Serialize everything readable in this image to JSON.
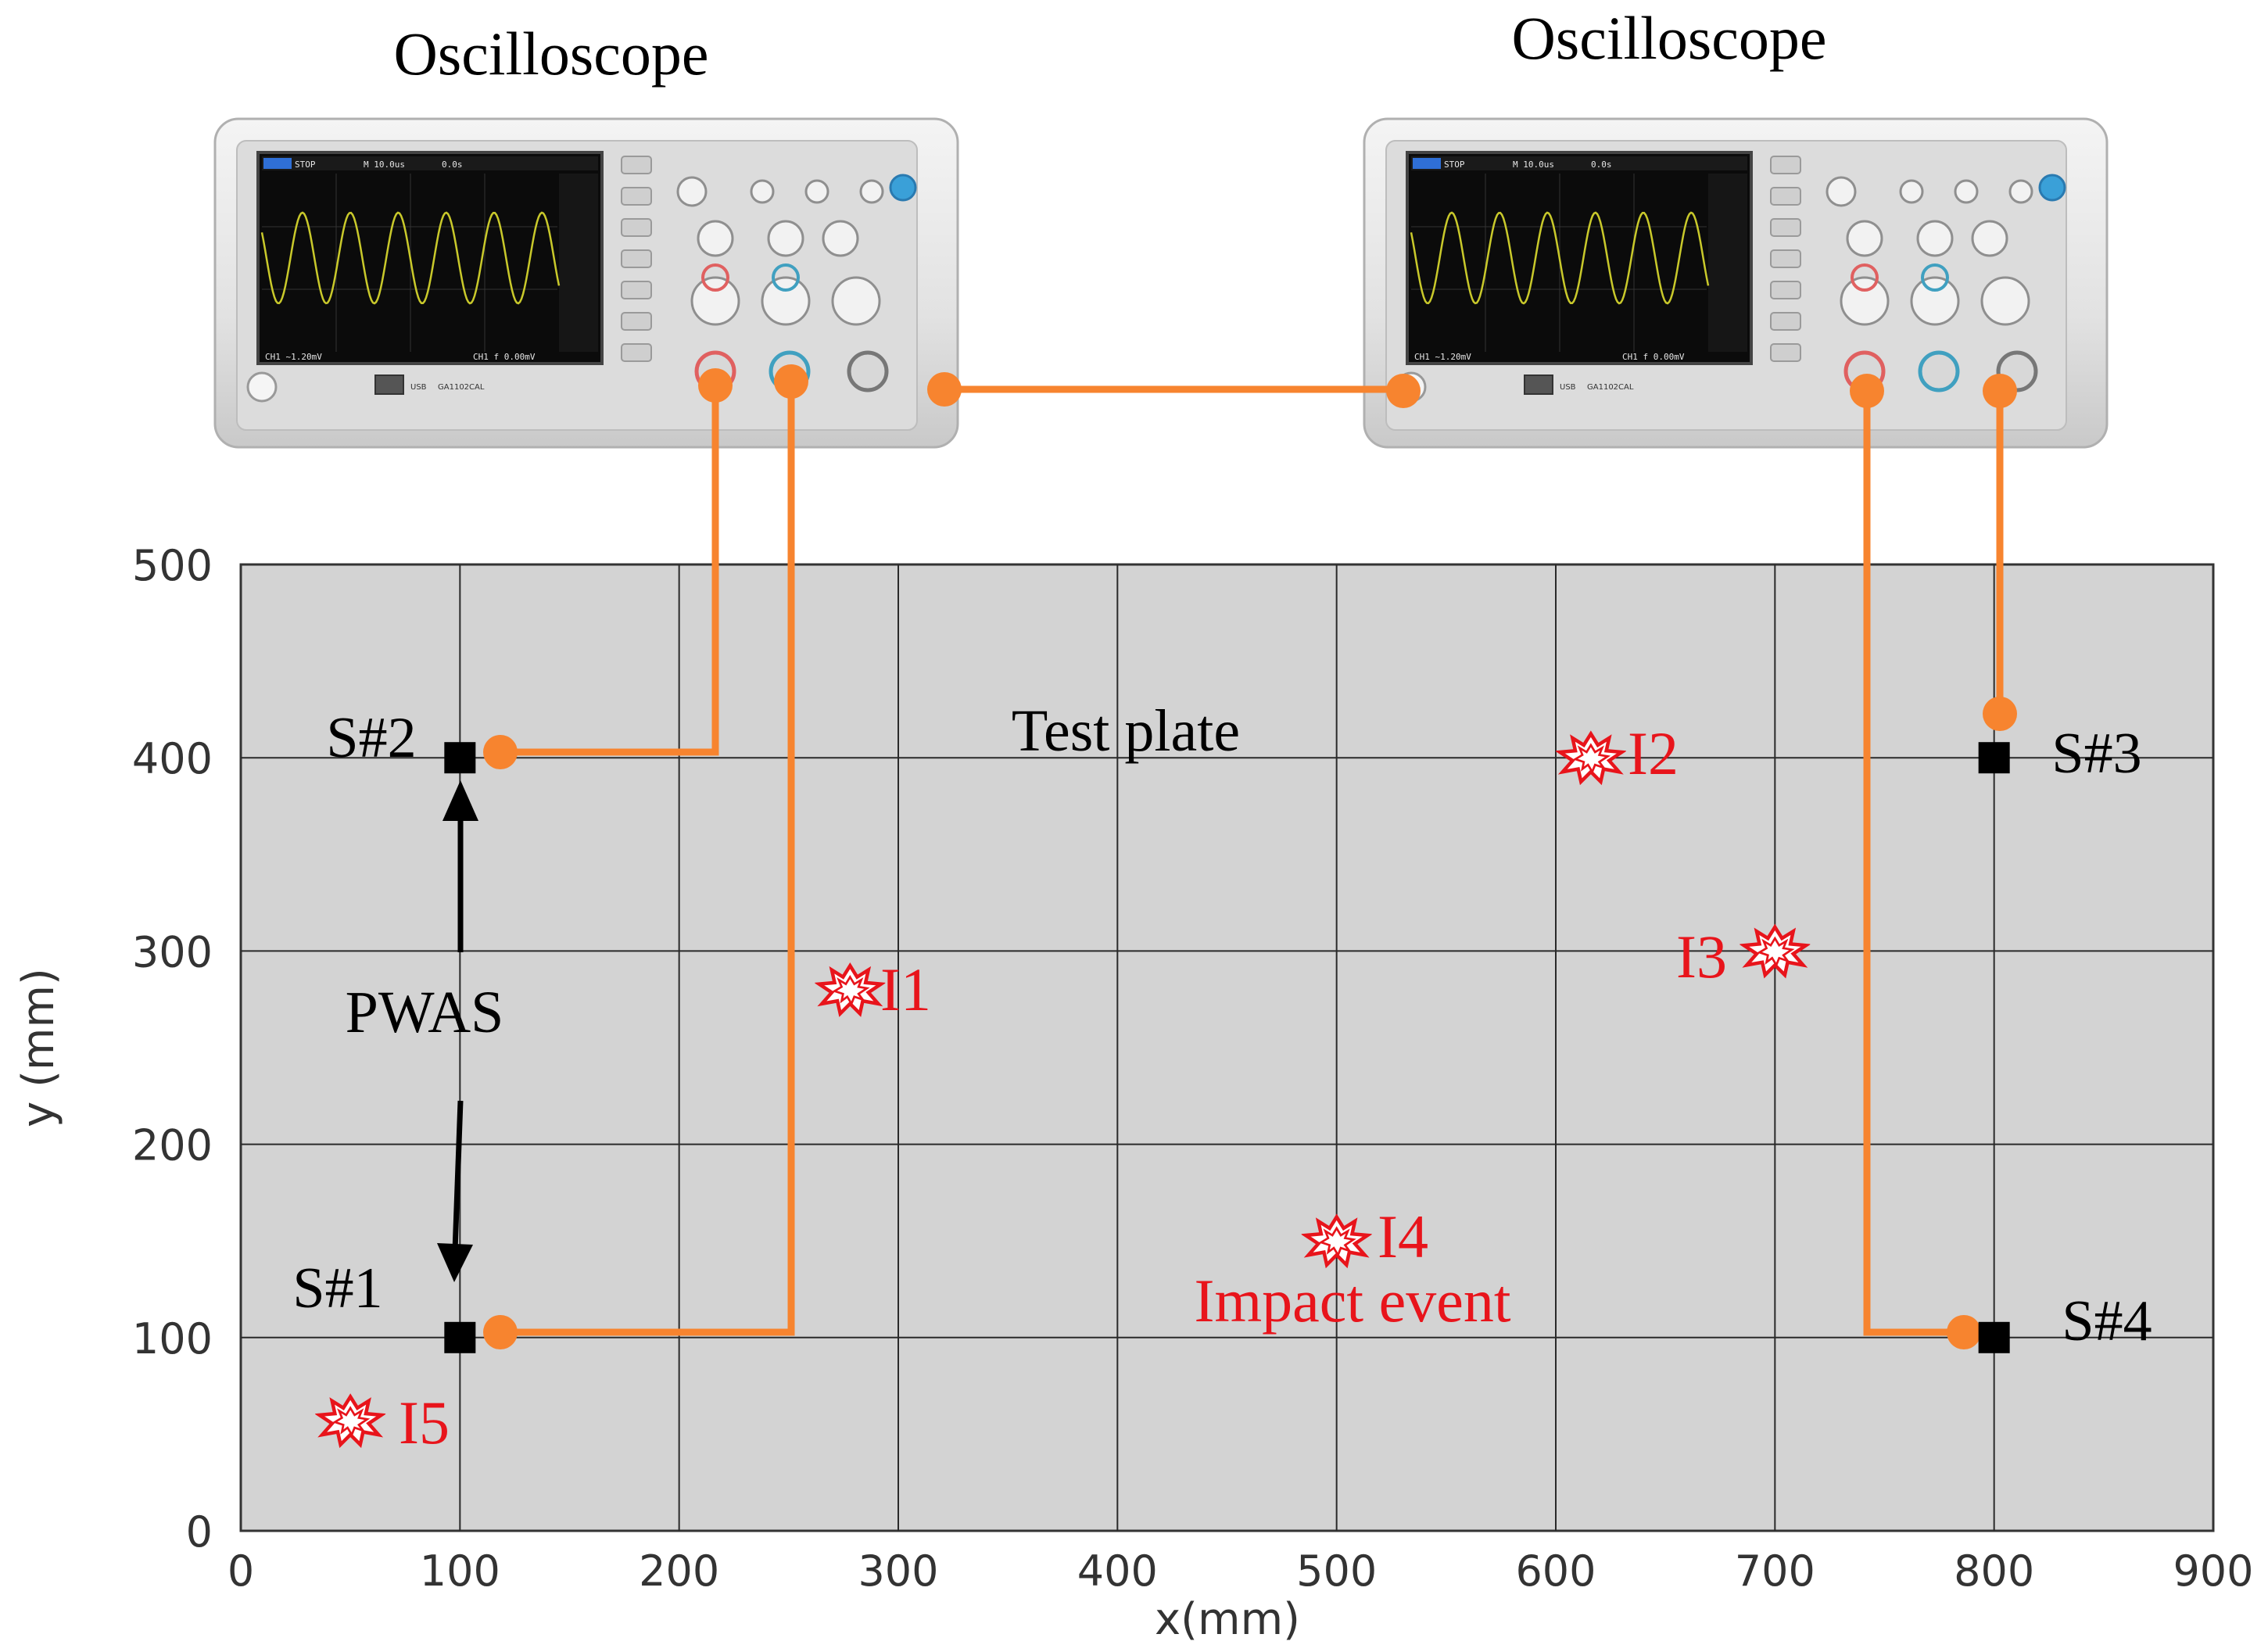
{
  "oscilloscopes": [
    {
      "title": "Oscilloscope",
      "model": "GA1102CAL",
      "usb": "USB",
      "screen": {
        "status": "STOP",
        "timebase": "M 10.0us",
        "offset": "0.0s",
        "footer_left": "CH1 ~1.20mV",
        "footer_right": "CH1 f 0.00mV"
      }
    },
    {
      "title": "Oscilloscope",
      "model": "GA1102CAL",
      "usb": "USB",
      "screen": {
        "status": "STOP",
        "timebase": "M 10.0us",
        "offset": "0.0s",
        "footer_left": "CH1 ~1.20mV",
        "footer_right": "CH1 f 0.00mV"
      }
    }
  ],
  "plate": {
    "title": "Test plate",
    "xlabel": "x(mm)",
    "ylabel": "y (mm)",
    "xlim": [
      0,
      900
    ],
    "ylim": [
      0,
      500
    ],
    "x_ticks": [
      "0",
      "100",
      "200",
      "300",
      "400",
      "500",
      "600",
      "700",
      "800",
      "900"
    ],
    "y_ticks": [
      "0",
      "100",
      "200",
      "300",
      "400",
      "500"
    ],
    "grid": true,
    "background": "#d3d3d3",
    "grid_color": "#2a2a2a"
  },
  "sensors": [
    {
      "label": "S#1",
      "x": 100,
      "y": 100
    },
    {
      "label": "S#2",
      "x": 100,
      "y": 400
    },
    {
      "label": "S#3",
      "x": 800,
      "y": 400
    },
    {
      "label": "S#4",
      "x": 800,
      "y": 100
    }
  ],
  "impacts": [
    {
      "label": "I1",
      "x": 278,
      "y": 280
    },
    {
      "label": "I2",
      "x": 616,
      "y": 400
    },
    {
      "label": "I3",
      "x": 700,
      "y": 300
    },
    {
      "label": "I4",
      "x": 500,
      "y": 150
    },
    {
      "label": "I5",
      "x": 50,
      "y": 57
    }
  ],
  "annotations": {
    "pwas": "PWAS",
    "impact_event": "Impact event"
  },
  "colors": {
    "cable": "#f7842f",
    "impact": "#e8141b",
    "sensor": "#000000",
    "scope_body": "#e9e9e9",
    "scope_screen": "#0b0b0b",
    "waveform": "#c9c92b"
  }
}
